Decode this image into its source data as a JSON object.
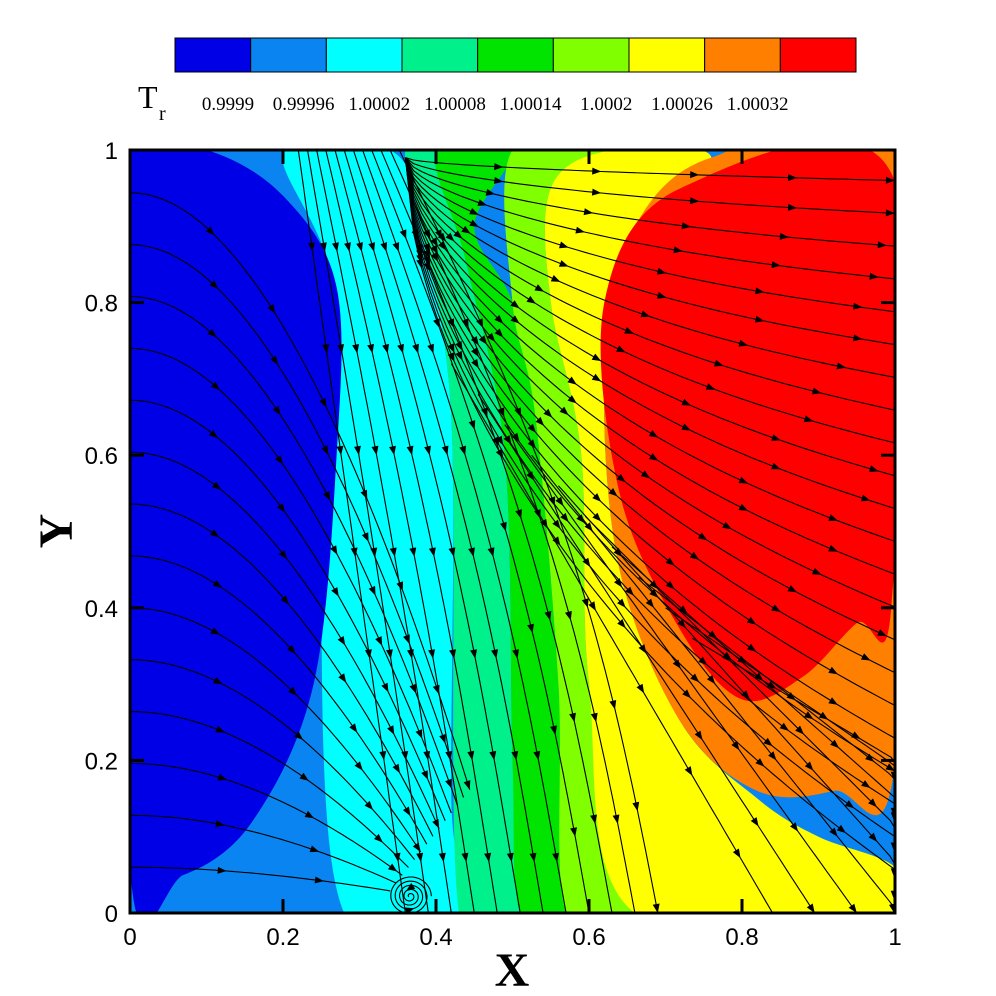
{
  "chart_data": {
    "type": "heatmap",
    "subtype": "filled-contour-with-streamlines",
    "title": "",
    "xlabel": "X",
    "ylabel": "Y",
    "xlim": [
      0,
      1
    ],
    "ylim": [
      0,
      1
    ],
    "xticks": [
      "0",
      "0.2",
      "0.4",
      "0.6",
      "0.8",
      "1"
    ],
    "yticks": [
      "0",
      "0.2",
      "0.4",
      "0.6",
      "0.8",
      "1"
    ],
    "grid": false,
    "legend": {
      "placement": "top",
      "title": "T",
      "title_subscript": "r",
      "levels": [
        "0.9999",
        "0.99996",
        "1.00002",
        "1.00008",
        "1.00014",
        "1.0002",
        "1.00026",
        "1.00032"
      ],
      "colors": [
        "#0000e6",
        "#0a84f0",
        "#00ffff",
        "#00f08c",
        "#00e400",
        "#80ff00",
        "#ffff00",
        "#ff8000",
        "#ff0000"
      ]
    },
    "contour_bands": [
      {
        "color": "#0a84f0",
        "boundary": [
          [
            0,
            0
          ],
          [
            0.27,
            0
          ],
          [
            0.25,
            0.4
          ],
          [
            0.28,
            0.7
          ],
          [
            0.24,
            0.9
          ],
          [
            0.18,
            1
          ],
          [
            0,
            1
          ]
        ]
      },
      {
        "color": "#00ffff",
        "boundary": [
          [
            0.28,
            0
          ],
          [
            0.43,
            0
          ],
          [
            0.42,
            0.15
          ],
          [
            0.42,
            0.65
          ],
          [
            0.38,
            0.9
          ],
          [
            0.34,
            1
          ],
          [
            0.2,
            1
          ],
          [
            0.27,
            0.8
          ],
          [
            0.25,
            0.4
          ]
        ]
      },
      {
        "color": "#0000e6",
        "boundary": [
          [
            0,
            0.06
          ],
          [
            0.07,
            0.05
          ],
          [
            0.16,
            0.12
          ],
          [
            0.24,
            0.3
          ],
          [
            0.27,
            0.6
          ],
          [
            0.27,
            0.82
          ],
          [
            0.2,
            0.94
          ],
          [
            0.1,
            1
          ],
          [
            0,
            1
          ]
        ]
      },
      {
        "color": "#00f08c",
        "boundary": [
          [
            0.43,
            0
          ],
          [
            0.51,
            0
          ],
          [
            0.5,
            0.2
          ],
          [
            0.49,
            0.6
          ],
          [
            0.44,
            0.85
          ],
          [
            0.4,
            1
          ],
          [
            0.36,
            1
          ],
          [
            0.38,
            0.9
          ],
          [
            0.42,
            0.65
          ]
        ]
      },
      {
        "color": "#00e400",
        "boundary": [
          [
            0.51,
            0
          ],
          [
            0.57,
            0
          ],
          [
            0.56,
            0.3
          ],
          [
            0.53,
            0.65
          ],
          [
            0.5,
            0.8
          ],
          [
            0.45,
            0.9
          ],
          [
            0.5,
            1
          ],
          [
            0.4,
            1
          ],
          [
            0.44,
            0.85
          ],
          [
            0.49,
            0.6
          ],
          [
            0.5,
            0.2
          ]
        ]
      },
      {
        "color": "#80ff00",
        "boundary": [
          [
            0.57,
            0
          ],
          [
            0.66,
            0
          ],
          [
            0.6,
            0.3
          ],
          [
            0.59,
            0.6
          ],
          [
            0.55,
            0.8
          ],
          [
            0.55,
            0.95
          ],
          [
            0.63,
            1
          ],
          [
            0.5,
            1
          ],
          [
            0.5,
            0.8
          ],
          [
            0.53,
            0.65
          ],
          [
            0.56,
            0.3
          ]
        ]
      },
      {
        "color": "#ffff00",
        "boundary": [
          [
            0.66,
            0
          ],
          [
            1,
            0
          ],
          [
            1,
            0.06
          ],
          [
            0.9,
            0.1
          ],
          [
            0.82,
            0.15
          ],
          [
            0.72,
            0.25
          ],
          [
            0.64,
            0.45
          ],
          [
            0.62,
            0.7
          ],
          [
            0.65,
            0.88
          ],
          [
            0.76,
            0.99
          ],
          [
            0.63,
            1
          ],
          [
            0.55,
            0.95
          ],
          [
            0.55,
            0.8
          ],
          [
            0.59,
            0.6
          ],
          [
            0.6,
            0.3
          ]
        ]
      },
      {
        "color": "#ff8000",
        "boundary": [
          [
            1,
            0.2
          ],
          [
            0.92,
            0.16
          ],
          [
            0.82,
            0.16
          ],
          [
            0.72,
            0.25
          ],
          [
            0.64,
            0.45
          ],
          [
            0.62,
            0.7
          ],
          [
            0.65,
            0.88
          ],
          [
            0.76,
            0.99
          ],
          [
            1,
            0.99
          ]
        ]
      },
      {
        "color": "#ff0000",
        "boundary": [
          [
            0.72,
            0.95
          ],
          [
            0.62,
            0.8
          ],
          [
            0.64,
            0.55
          ],
          [
            0.72,
            0.37
          ],
          [
            0.8,
            0.28
          ],
          [
            0.88,
            0.31
          ],
          [
            0.95,
            0.38
          ],
          [
            0.995,
            0.4
          ],
          [
            0.995,
            0.97
          ]
        ]
      }
    ]
  },
  "streamline_style": {
    "color": "#000000",
    "arrows": true
  }
}
